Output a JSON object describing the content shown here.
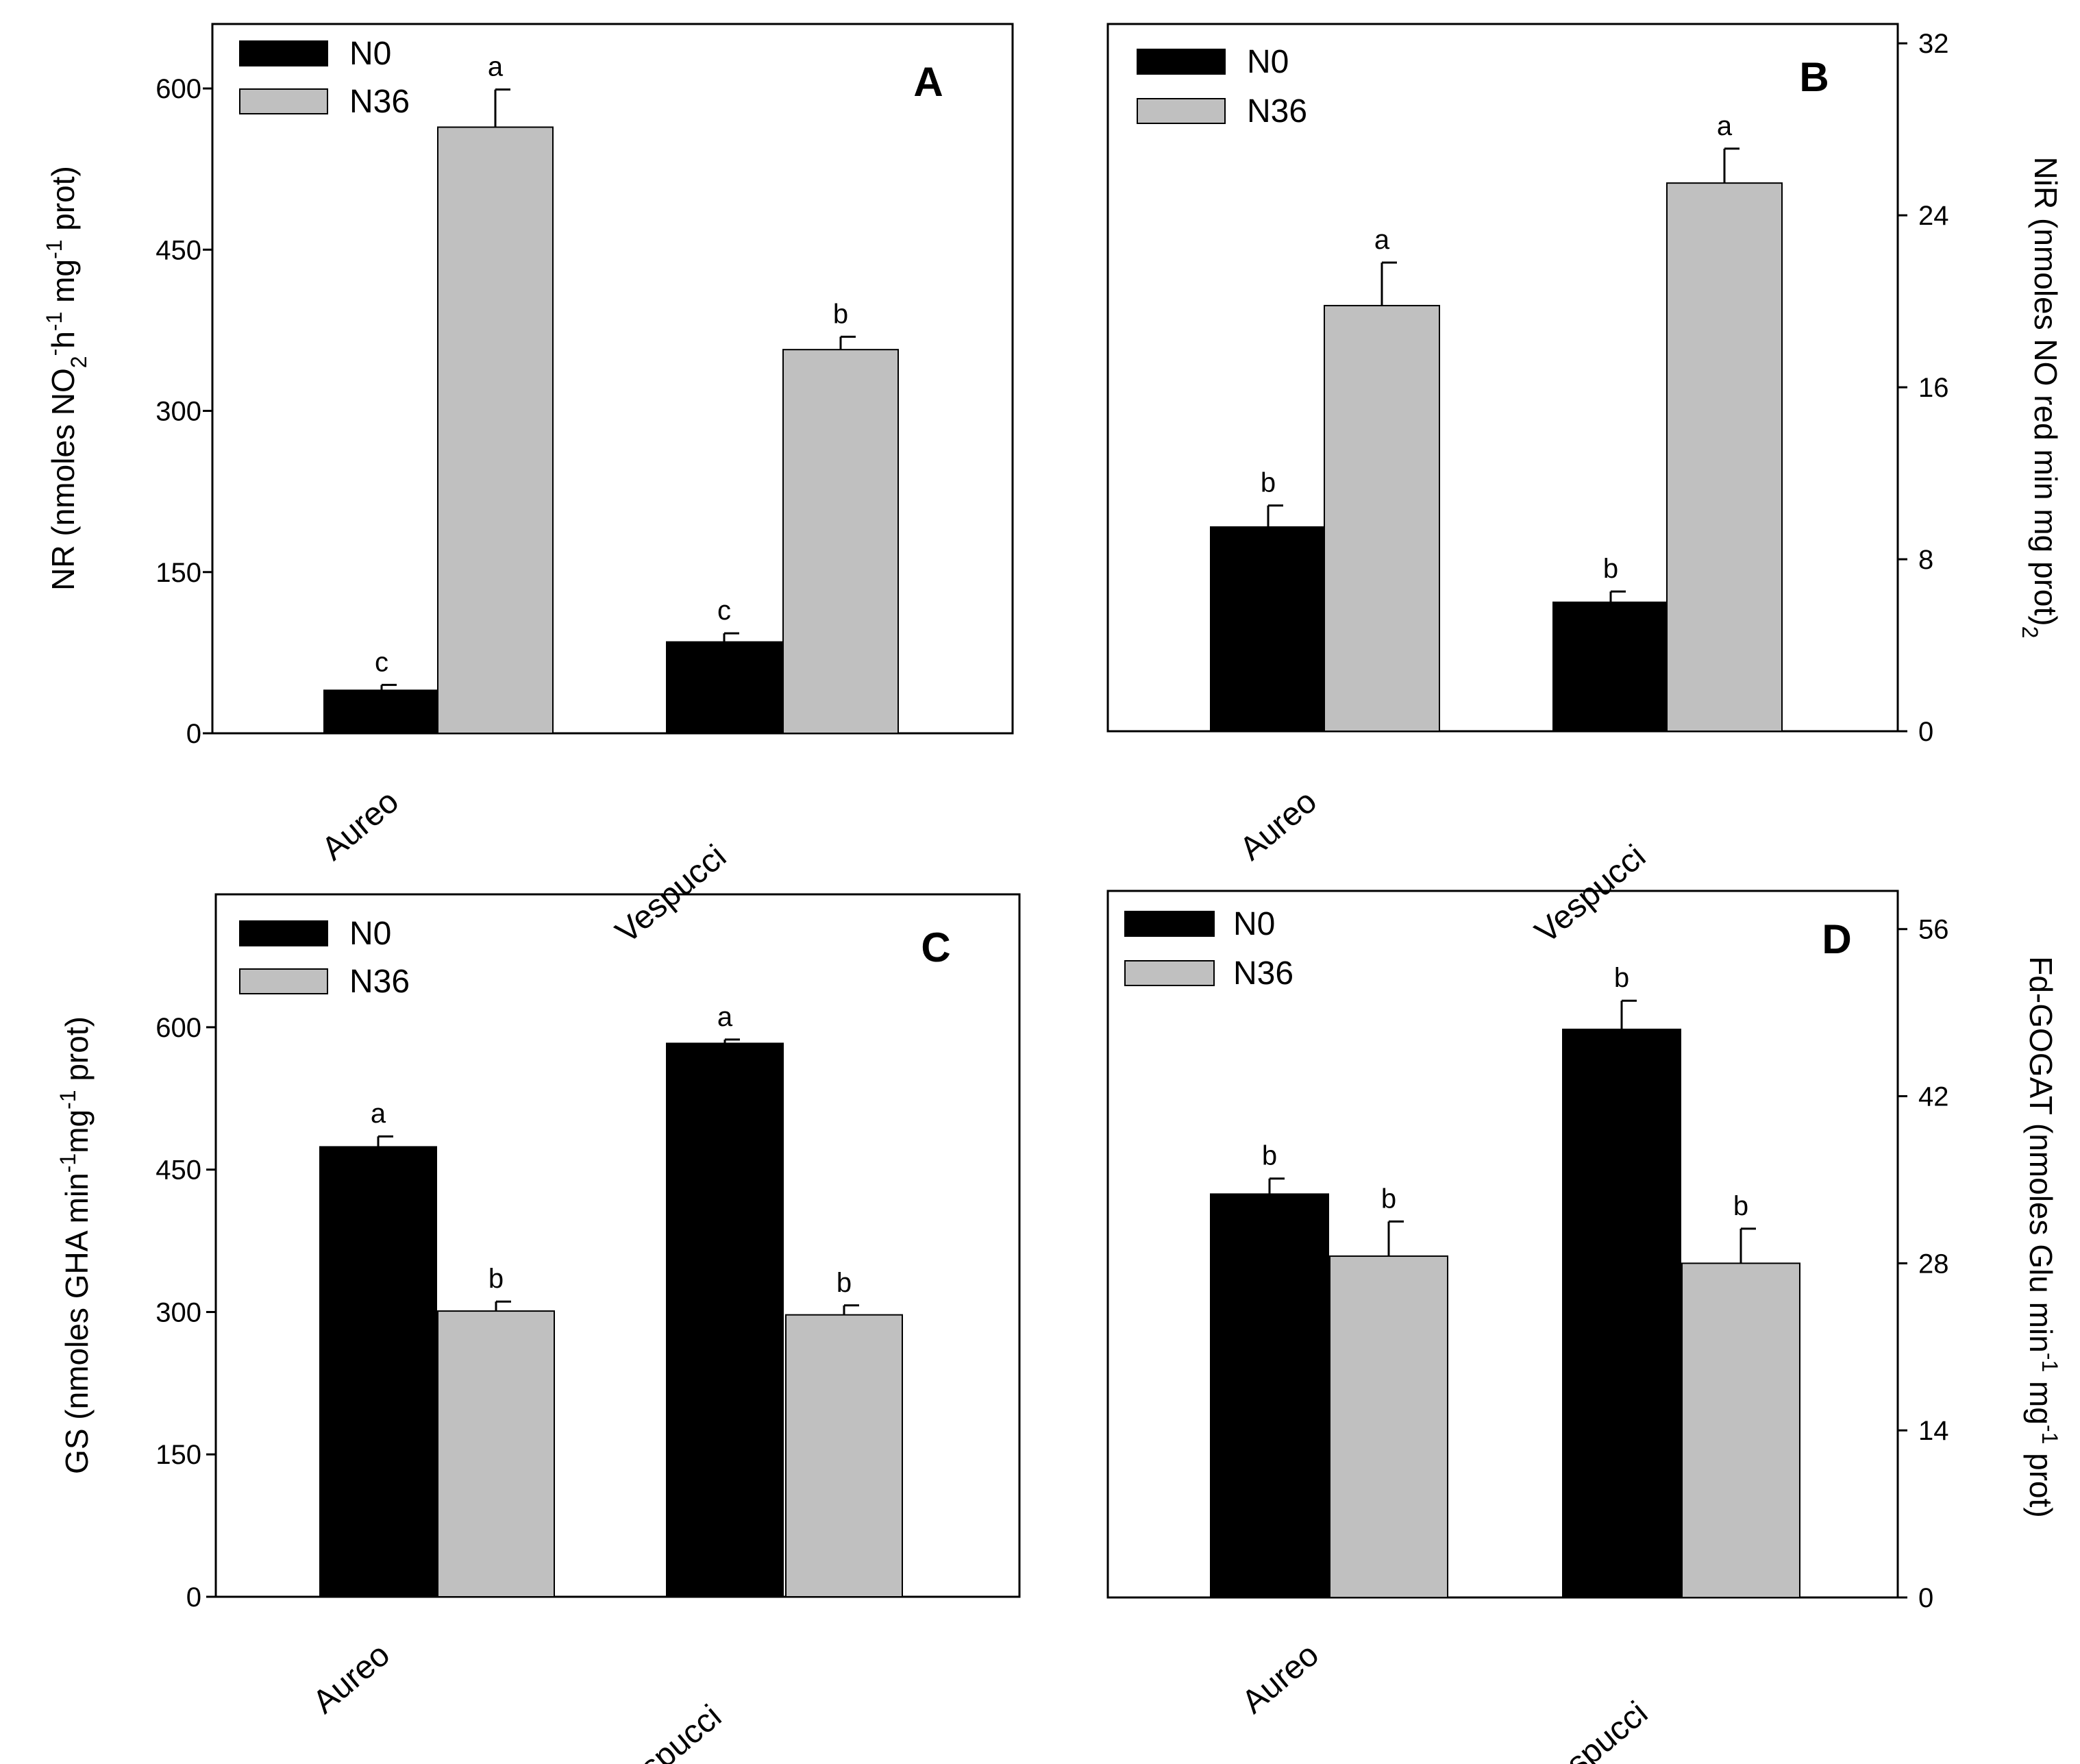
{
  "chart_data": [
    {
      "type": "bar",
      "panel": "A",
      "categories": [
        "Aureo",
        "Vespucci"
      ],
      "series": [
        {
          "name": "N0",
          "color": "#000000",
          "values": [
            40,
            85
          ],
          "errors": [
            5,
            8
          ],
          "labels": [
            "c",
            "c"
          ]
        },
        {
          "name": "N36",
          "color": "#c0c0c0",
          "values": [
            564,
            357
          ],
          "errors": [
            35,
            12
          ],
          "labels": [
            "a",
            "b"
          ]
        }
      ],
      "ylabel": "NR (nmoles NO2-h-1 mg-1 prot)",
      "ylabel_parts": {
        "p1": "NR (nmoles NO",
        "sub1": "2",
        "sup1": "-",
        "p2": "h",
        "sup2": "-1",
        "p3": " mg",
        "sup3": "-1",
        "p4": " prot)"
      },
      "ylim": [
        0,
        660
      ],
      "yticks": [
        0,
        150,
        300,
        450,
        600
      ],
      "yaxis_side": "left",
      "legend": "top-left"
    },
    {
      "type": "bar",
      "panel": "B",
      "categories": [
        "Aureo",
        "Vespucci"
      ],
      "series": [
        {
          "name": "N0",
          "color": "#000000",
          "values": [
            9.5,
            6.0
          ],
          "errors": [
            1.0,
            0.5
          ],
          "labels": [
            "b",
            "b"
          ]
        },
        {
          "name": "N36",
          "color": "#c0c0c0",
          "values": [
            19.8,
            25.5
          ],
          "errors": [
            2.0,
            1.6
          ],
          "labels": [
            "a",
            "a"
          ]
        }
      ],
      "ylabel": "NiR (nmoles NO 2 red min mg prot)",
      "ylabel_parts": {
        "p1": "NiR (nmoles NO  red min  mg   prot)",
        "sub1": "2"
      },
      "ylim": [
        0,
        32.9
      ],
      "yticks": [
        0,
        8,
        16,
        24,
        32
      ],
      "yaxis_side": "right",
      "legend": "top-left"
    },
    {
      "type": "bar",
      "panel": "C",
      "categories": [
        "Aureo",
        "Vespucci"
      ],
      "series": [
        {
          "name": "N0",
          "color": "#000000",
          "values": [
            474,
            583
          ],
          "errors": [
            11,
            4
          ],
          "labels": [
            "a",
            "a"
          ]
        },
        {
          "name": "N36",
          "color": "#c0c0c0",
          "values": [
            301,
            297
          ],
          "errors": [
            10,
            10
          ],
          "labels": [
            "b",
            "b"
          ]
        }
      ],
      "ylabel": "GS (nmoles GHA min-1mg-1 prot)",
      "ylabel_parts": {
        "p1": "GS (nmoles GHA min",
        "sup1": "-1",
        "p2": "mg",
        "sup2": "-1",
        "p3": " prot)"
      },
      "ylim": [
        0,
        740
      ],
      "yticks": [
        0,
        150,
        300,
        450,
        600
      ],
      "yaxis_side": "left",
      "legend": "top-left"
    },
    {
      "type": "bar",
      "panel": "D",
      "categories": [
        "Aureo",
        "Vespucci"
      ],
      "series": [
        {
          "name": "N0",
          "color": "#000000",
          "values": [
            33.8,
            47.6
          ],
          "errors": [
            1.3,
            2.4
          ],
          "labels": [
            "b",
            "b"
          ]
        },
        {
          "name": "N36",
          "color": "#c0c0c0",
          "values": [
            28.6,
            28.0
          ],
          "errors": [
            2.9,
            2.9
          ],
          "labels": [
            "b",
            "b"
          ]
        }
      ],
      "ylabel": "Fd-GOGAT (nmoles Glu min-1 mg-1 prot)",
      "ylabel_parts": {
        "p1": "Fd-GOGAT (nmoles Glu min",
        "sup1": "-1",
        "p2": " mg",
        "sup2": "-1",
        "p3": " prot)"
      },
      "ylim": [
        0,
        59.2
      ],
      "yticks": [
        0,
        14,
        28,
        42,
        56
      ],
      "yaxis_side": "right",
      "legend": "top-left"
    }
  ],
  "colors": {
    "N0": "#000000",
    "N36": "#c0c0c0",
    "axis": "#000000"
  }
}
